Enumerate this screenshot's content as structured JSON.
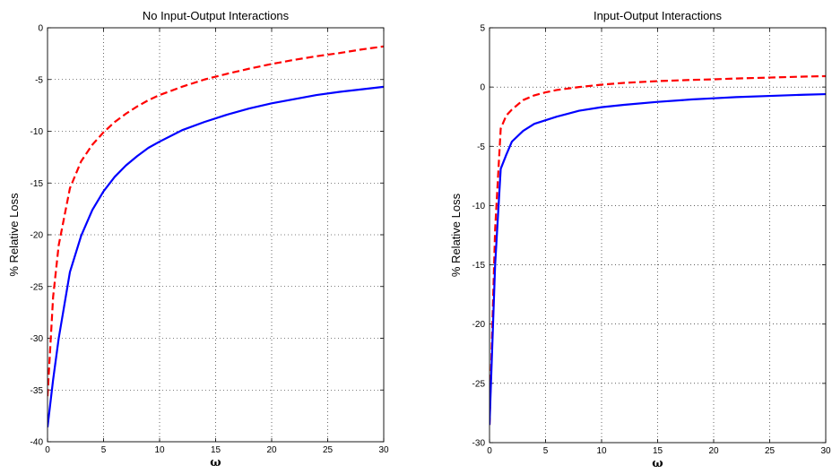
{
  "chart_data": [
    {
      "type": "line",
      "title": "No Input-Output Interactions",
      "xlabel": "ω",
      "ylabel": "% Relative Loss",
      "xlim": [
        0,
        30
      ],
      "ylim": [
        -40,
        0
      ],
      "xticks": [
        0,
        5,
        10,
        15,
        20,
        25,
        30
      ],
      "yticks": [
        -40,
        -35,
        -30,
        -25,
        -20,
        -15,
        -10,
        -5,
        0
      ],
      "grid": true,
      "series": [
        {
          "color": "#ff0000",
          "style": "dashed",
          "x": [
            0,
            0.5,
            1,
            2,
            3,
            4,
            5,
            6,
            7,
            8,
            9,
            10,
            12,
            14,
            16,
            18,
            20,
            22,
            24,
            26,
            28,
            30
          ],
          "y": [
            -35.6,
            -26,
            -21,
            -15.5,
            -12.9,
            -11.3,
            -10.1,
            -9.1,
            -8.3,
            -7.6,
            -7.0,
            -6.5,
            -5.7,
            -5.0,
            -4.45,
            -3.95,
            -3.5,
            -3.1,
            -2.75,
            -2.45,
            -2.1,
            -1.8
          ]
        },
        {
          "color": "#0000ff",
          "style": "solid",
          "x": [
            0,
            0.5,
            1,
            2,
            3,
            4,
            5,
            6,
            7,
            8,
            9,
            10,
            12,
            14,
            16,
            18,
            20,
            22,
            24,
            26,
            28,
            30
          ],
          "y": [
            -38.6,
            -34,
            -30,
            -23.6,
            -20.1,
            -17.6,
            -15.8,
            -14.4,
            -13.3,
            -12.4,
            -11.6,
            -11.0,
            -9.9,
            -9.1,
            -8.4,
            -7.8,
            -7.3,
            -6.9,
            -6.5,
            -6.2,
            -5.95,
            -5.7
          ]
        }
      ]
    },
    {
      "type": "line",
      "title": "Input-Output Interactions",
      "xlabel": "ω",
      "ylabel": "% Relative Loss",
      "xlim": [
        0,
        30
      ],
      "ylim": [
        -30,
        5
      ],
      "xticks": [
        0,
        5,
        10,
        15,
        20,
        25,
        30
      ],
      "yticks": [
        -30,
        -25,
        -20,
        -15,
        -10,
        -5,
        0,
        5
      ],
      "grid": true,
      "series": [
        {
          "color": "#ff0000",
          "style": "dashed",
          "x": [
            0,
            0.5,
            1,
            1.5,
            2,
            3,
            4,
            5,
            6,
            8,
            10,
            12,
            15,
            18,
            20,
            22,
            25,
            28,
            30
          ],
          "y": [
            -28.5,
            -12,
            -3.5,
            -2.4,
            -1.9,
            -1.1,
            -0.7,
            -0.45,
            -0.25,
            0.0,
            0.2,
            0.35,
            0.5,
            0.6,
            0.65,
            0.72,
            0.8,
            0.88,
            0.92
          ]
        },
        {
          "color": "#0000ff",
          "style": "solid",
          "x": [
            0,
            0.5,
            1,
            1.5,
            2,
            3,
            4,
            5,
            6,
            8,
            10,
            12,
            15,
            18,
            20,
            22,
            25,
            28,
            30
          ],
          "y": [
            -28.5,
            -15,
            -6.9,
            -5.7,
            -4.6,
            -3.7,
            -3.1,
            -2.8,
            -2.5,
            -2.0,
            -1.7,
            -1.5,
            -1.25,
            -1.05,
            -0.95,
            -0.85,
            -0.75,
            -0.65,
            -0.6
          ]
        }
      ]
    }
  ]
}
